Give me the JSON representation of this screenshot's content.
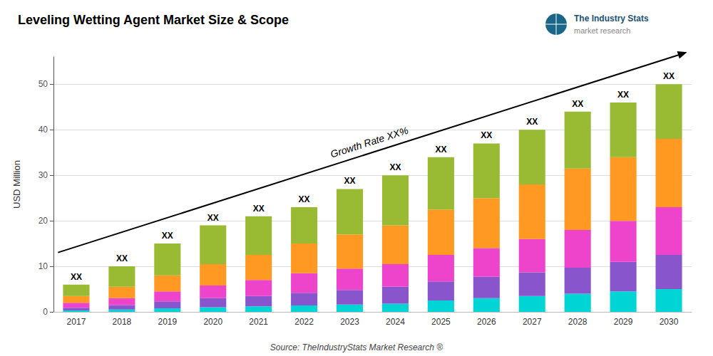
{
  "chart_data": {
    "type": "bar",
    "stacked": true,
    "title": "Leveling Wetting Agent Market Size & Scope",
    "ylabel": "USD Million",
    "categories": [
      "2017",
      "2018",
      "2019",
      "2020",
      "2021",
      "2022",
      "2023",
      "2024",
      "2025",
      "2026",
      "2027",
      "2028",
      "2029",
      "2030"
    ],
    "series": [
      {
        "color": "#00D4D4",
        "values": [
          0.3,
          0.5,
          0.8,
          1.0,
          1.2,
          1.4,
          1.6,
          1.8,
          2.5,
          3.0,
          3.5,
          4.0,
          4.5,
          5.0
        ]
      },
      {
        "color": "#8855CC",
        "values": [
          0.6,
          1.0,
          1.5,
          2.0,
          2.3,
          2.8,
          3.2,
          3.7,
          4.2,
          4.7,
          5.2,
          5.7,
          6.5,
          7.5
        ]
      },
      {
        "color": "#EE44CC",
        "values": [
          1.1,
          1.5,
          2.2,
          2.8,
          3.5,
          4.3,
          4.7,
          5.0,
          5.8,
          6.3,
          7.3,
          8.3,
          9.0,
          10.5
        ]
      },
      {
        "color": "#FF9922",
        "values": [
          1.5,
          2.5,
          3.5,
          4.7,
          5.5,
          6.5,
          7.5,
          8.5,
          10.0,
          11.0,
          12.0,
          13.5,
          14.0,
          15.0
        ]
      },
      {
        "color": "#99BB33",
        "values": [
          2.5,
          4.5,
          7.0,
          8.5,
          8.5,
          8.0,
          10.0,
          11.0,
          11.5,
          12.0,
          12.0,
          12.5,
          12.0,
          12.0
        ]
      }
    ],
    "ylim": [
      0,
      56
    ],
    "yticks": [
      0,
      10,
      20,
      30,
      40,
      50
    ],
    "grid": true,
    "annotations": [
      {
        "text": "XX",
        "x": "2017"
      },
      {
        "text": "XX",
        "x": "2018"
      },
      {
        "text": "XX",
        "x": "2019"
      },
      {
        "text": "XX",
        "x": "2020"
      },
      {
        "text": "XX",
        "x": "2021"
      },
      {
        "text": "XX",
        "x": "2022"
      },
      {
        "text": "XX",
        "x": "2023"
      },
      {
        "text": "XX",
        "x": "2024"
      },
      {
        "text": "XX",
        "x": "2025"
      },
      {
        "text": "XX",
        "x": "2026"
      },
      {
        "text": "XX",
        "x": "2027"
      },
      {
        "text": "XX",
        "x": "2028"
      },
      {
        "text": "XX",
        "x": "2029"
      },
      {
        "text": "XX",
        "x": "2030"
      },
      {
        "text": "Growth Rate XX%"
      }
    ],
    "source": "Source: TheIndustryStats Market Research ®",
    "logo": [
      "The Industry Stats",
      "market research"
    ]
  }
}
